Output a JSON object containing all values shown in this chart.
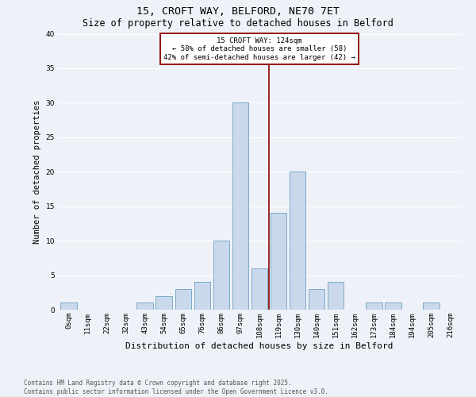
{
  "title1": "15, CROFT WAY, BELFORD, NE70 7ET",
  "title2": "Size of property relative to detached houses in Belford",
  "xlabel": "Distribution of detached houses by size in Belford",
  "ylabel": "Number of detached properties",
  "bin_labels": [
    "0sqm",
    "11sqm",
    "22sqm",
    "32sqm",
    "43sqm",
    "54sqm",
    "65sqm",
    "76sqm",
    "86sqm",
    "97sqm",
    "108sqm",
    "119sqm",
    "130sqm",
    "140sqm",
    "151sqm",
    "162sqm",
    "173sqm",
    "184sqm",
    "194sqm",
    "205sqm",
    "216sqm"
  ],
  "bar_values": [
    1,
    0,
    0,
    0,
    1,
    2,
    3,
    4,
    10,
    30,
    6,
    14,
    20,
    3,
    4,
    0,
    1,
    1,
    0,
    1,
    0
  ],
  "bar_color": "#c9d9eb",
  "bar_edge_color": "#7aaac8",
  "vline_x": 10.5,
  "vline_color": "#8b0000",
  "annotation_text": "15 CROFT WAY: 124sqm\n← 58% of detached houses are smaller (58)\n42% of semi-detached houses are larger (42) →",
  "annotation_box_color": "#8b0000",
  "annotation_bg": "#ffffff",
  "ylim": [
    0,
    40
  ],
  "yticks": [
    0,
    5,
    10,
    15,
    20,
    25,
    30,
    35,
    40
  ],
  "footer": "Contains HM Land Registry data © Crown copyright and database right 2025.\nContains public sector information licensed under the Open Government Licence v3.0.",
  "bg_color": "#eef2f8",
  "grid_color": "#ffffff",
  "title_fontsize": 9.5,
  "subtitle_fontsize": 8.5,
  "axis_label_fontsize": 7.5,
  "tick_fontsize": 6.5,
  "footer_fontsize": 5.5,
  "annotation_fontsize": 6.5
}
